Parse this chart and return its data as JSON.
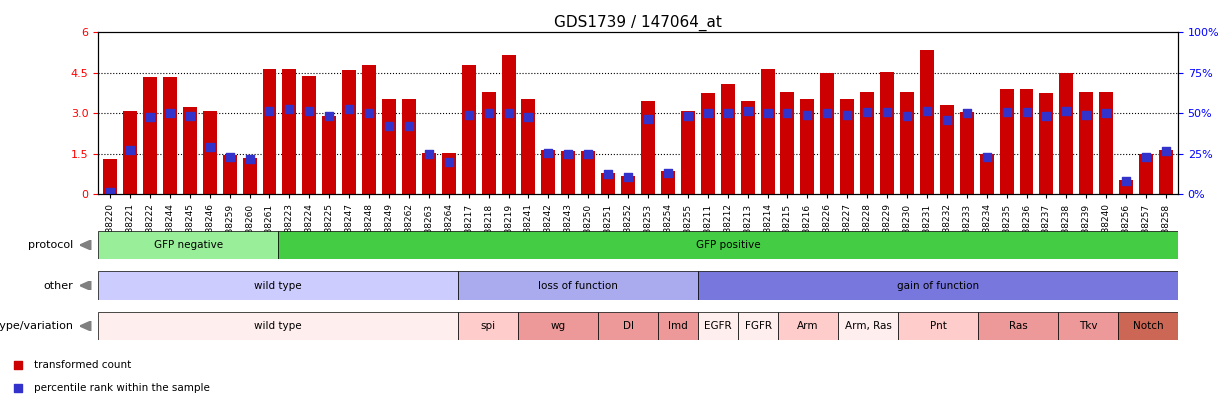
{
  "title": "GDS1739 / 147064_at",
  "samples": [
    "GSM88220",
    "GSM88221",
    "GSM88222",
    "GSM88244",
    "GSM88245",
    "GSM88246",
    "GSM88259",
    "GSM88260",
    "GSM88261",
    "GSM88223",
    "GSM88224",
    "GSM88225",
    "GSM88247",
    "GSM88248",
    "GSM88249",
    "GSM88262",
    "GSM88263",
    "GSM88264",
    "GSM88217",
    "GSM88218",
    "GSM88219",
    "GSM88241",
    "GSM88242",
    "GSM88243",
    "GSM88250",
    "GSM88251",
    "GSM88252",
    "GSM88253",
    "GSM88254",
    "GSM88255",
    "GSM88211",
    "GSM88212",
    "GSM88213",
    "GSM88214",
    "GSM88215",
    "GSM88216",
    "GSM88226",
    "GSM88227",
    "GSM88228",
    "GSM88229",
    "GSM88230",
    "GSM88231",
    "GSM88232",
    "GSM88233",
    "GSM88234",
    "GSM88235",
    "GSM88236",
    "GSM88237",
    "GSM88238",
    "GSM88239",
    "GSM88240",
    "GSM88256",
    "GSM88257",
    "GSM88258"
  ],
  "bar_heights": [
    1.3,
    3.1,
    4.35,
    4.35,
    3.25,
    3.1,
    1.45,
    1.35,
    4.65,
    4.65,
    4.4,
    2.9,
    4.6,
    4.8,
    3.55,
    3.55,
    1.55,
    1.55,
    4.8,
    3.8,
    5.15,
    3.55,
    1.65,
    1.6,
    1.6,
    0.8,
    0.7,
    3.45,
    0.85,
    3.1,
    3.75,
    4.1,
    3.45,
    4.65,
    3.8,
    3.55,
    4.5,
    3.55,
    3.8,
    4.55,
    3.8,
    5.35,
    3.3,
    3.05,
    1.5,
    3.9,
    3.9,
    3.75,
    4.5,
    3.8,
    3.8,
    0.55,
    1.5,
    1.65
  ],
  "blue_dots": [
    0.1,
    1.65,
    2.85,
    3.0,
    2.9,
    1.75,
    1.4,
    1.3,
    3.1,
    3.15,
    3.1,
    2.9,
    3.15,
    3.0,
    2.55,
    2.55,
    1.5,
    1.2,
    2.95,
    3.0,
    3.0,
    2.85,
    1.55,
    1.5,
    1.5,
    0.75,
    0.65,
    2.8,
    0.8,
    2.9,
    3.0,
    3.0,
    3.1,
    3.0,
    3.0,
    2.95,
    3.0,
    2.95,
    3.05,
    3.05,
    2.9,
    3.1,
    2.75,
    3.0,
    1.4,
    3.05,
    3.05,
    2.9,
    3.1,
    2.95,
    3.0,
    0.5,
    1.4,
    1.6
  ],
  "ylim": [
    0,
    6
  ],
  "yticks_left": [
    0,
    1.5,
    3.0,
    4.5,
    6
  ],
  "yticks_right": [
    0,
    25,
    50,
    75,
    100
  ],
  "ylabel_right_labels": [
    "0%",
    "25%",
    "50%",
    "75%",
    "100%"
  ],
  "bar_color": "#cc0000",
  "dot_color": "#3333cc",
  "protocol_labels": [
    {
      "text": "GFP negative",
      "start": 0,
      "end": 8,
      "color": "#99ee99"
    },
    {
      "text": "GFP positive",
      "start": 9,
      "end": 53,
      "color": "#44cc44"
    }
  ],
  "other_labels": [
    {
      "text": "wild type",
      "start": 0,
      "end": 17,
      "color": "#ccccff"
    },
    {
      "text": "loss of function",
      "start": 18,
      "end": 29,
      "color": "#aaaaee"
    },
    {
      "text": "gain of function",
      "start": 30,
      "end": 53,
      "color": "#7777dd"
    }
  ],
  "genotype_labels": [
    {
      "text": "wild type",
      "start": 0,
      "end": 17,
      "color": "#ffeeee"
    },
    {
      "text": "spi",
      "start": 18,
      "end": 20,
      "color": "#ffcccc"
    },
    {
      "text": "wg",
      "start": 21,
      "end": 24,
      "color": "#ee9999"
    },
    {
      "text": "Dl",
      "start": 25,
      "end": 27,
      "color": "#ee9999"
    },
    {
      "text": "lmd",
      "start": 28,
      "end": 29,
      "color": "#ee9999"
    },
    {
      "text": "EGFR",
      "start": 30,
      "end": 31,
      "color": "#ffeeee"
    },
    {
      "text": "FGFR",
      "start": 32,
      "end": 33,
      "color": "#ffeeee"
    },
    {
      "text": "Arm",
      "start": 34,
      "end": 36,
      "color": "#ffcccc"
    },
    {
      "text": "Arm, Ras",
      "start": 37,
      "end": 39,
      "color": "#ffeeee"
    },
    {
      "text": "Pnt",
      "start": 40,
      "end": 43,
      "color": "#ffcccc"
    },
    {
      "text": "Ras",
      "start": 44,
      "end": 47,
      "color": "#ee9999"
    },
    {
      "text": "Tkv",
      "start": 48,
      "end": 50,
      "color": "#ee9999"
    },
    {
      "text": "Notch",
      "start": 51,
      "end": 53,
      "color": "#cc6655"
    }
  ]
}
